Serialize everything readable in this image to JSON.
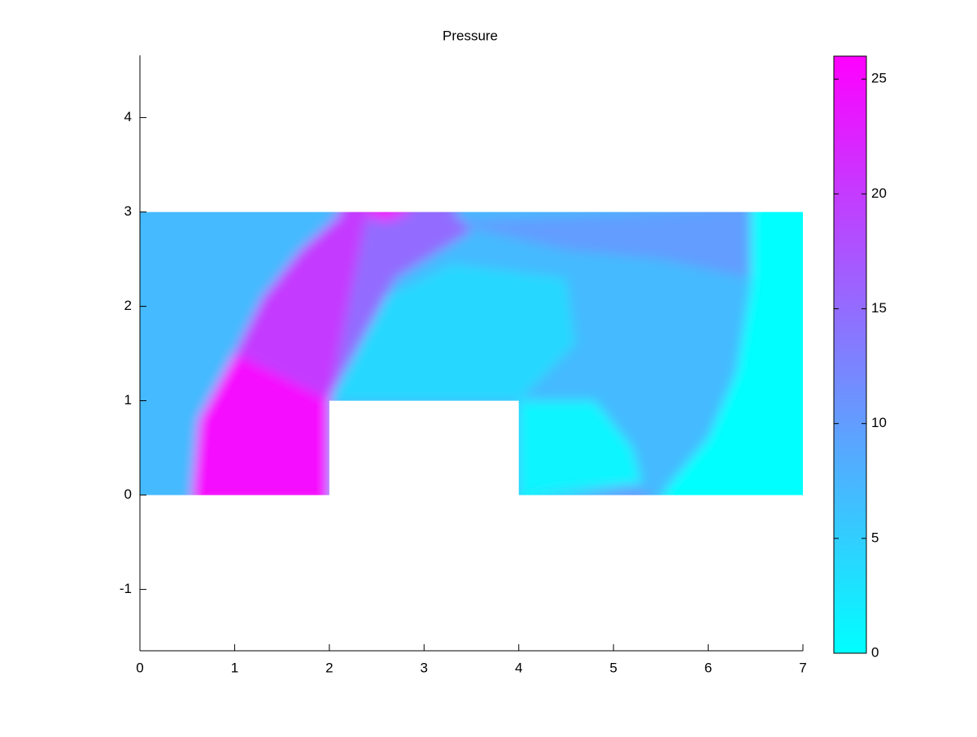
{
  "chart_data": {
    "type": "pseudocolor",
    "title": "Pressure",
    "xlim": [
      0,
      7
    ],
    "xticks": [
      0,
      1,
      2,
      3,
      4,
      5,
      6,
      7
    ],
    "ylim": [
      -1.65,
      4.66
    ],
    "yticks": [
      -1,
      0,
      1,
      2,
      3,
      4
    ],
    "domain": [
      [
        0,
        0
      ],
      [
        2,
        0
      ],
      [
        2,
        1
      ],
      [
        4,
        1
      ],
      [
        4,
        0
      ],
      [
        7,
        0
      ],
      [
        7,
        3
      ],
      [
        0,
        3
      ]
    ],
    "regions": [
      {
        "points": [
          [
            0,
            0
          ],
          [
            7,
            0
          ],
          [
            7,
            3
          ],
          [
            0,
            3
          ]
        ],
        "value": 7
      },
      {
        "points": [
          [
            3.2,
            2.9
          ],
          [
            6.45,
            3
          ],
          [
            6.45,
            2.3
          ],
          [
            5.5,
            2.5
          ],
          [
            4.5,
            2.6
          ]
        ],
        "value": 10
      },
      {
        "points": [
          [
            2,
            1
          ],
          [
            2.6,
            2.1
          ],
          [
            3.3,
            2.45
          ],
          [
            4.5,
            2.3
          ],
          [
            4.6,
            1.6
          ],
          [
            4,
            1
          ]
        ],
        "value": 4
      },
      {
        "points": [
          [
            2.4,
            3
          ],
          [
            3.3,
            3
          ],
          [
            3.5,
            2.8
          ],
          [
            2.7,
            2.3
          ],
          [
            2,
            1
          ]
        ],
        "value": 15
      },
      {
        "points": [
          [
            2.2,
            3
          ],
          [
            2.9,
            3
          ],
          [
            2.6,
            2.9
          ]
        ],
        "value": 25
      },
      {
        "points": [
          [
            1.0,
            1.5
          ],
          [
            1.3,
            2.1
          ],
          [
            1.7,
            2.6
          ],
          [
            2.15,
            3
          ],
          [
            2.4,
            3
          ],
          [
            2,
            1
          ]
        ],
        "value": 20
      },
      {
        "points": [
          [
            0.55,
            0
          ],
          [
            0.62,
            0.8
          ],
          [
            1.0,
            1.5
          ],
          [
            2,
            1
          ],
          [
            2,
            0
          ]
        ],
        "value": 25
      },
      {
        "points": [
          [
            4,
            1
          ],
          [
            4.8,
            1
          ],
          [
            5.2,
            0.5
          ],
          [
            5.3,
            0.12
          ],
          [
            4,
            0
          ]
        ],
        "value": 1
      },
      {
        "points": [
          [
            4.6,
            0.02
          ],
          [
            5.45,
            0
          ],
          [
            5.2,
            0.09
          ]
        ],
        "value": 11
      },
      {
        "points": [
          [
            6.45,
            3
          ],
          [
            7,
            3
          ],
          [
            7,
            0
          ],
          [
            5.5,
            0
          ],
          [
            6.0,
            0.6
          ],
          [
            6.3,
            1.3
          ],
          [
            6.45,
            2.2
          ]
        ],
        "value": 0
      }
    ],
    "colormap": [
      "#00ffff",
      "#ff00ff"
    ],
    "clim": [
      0,
      26
    ],
    "cticks": [
      0,
      5,
      10,
      15,
      20,
      25
    ]
  }
}
